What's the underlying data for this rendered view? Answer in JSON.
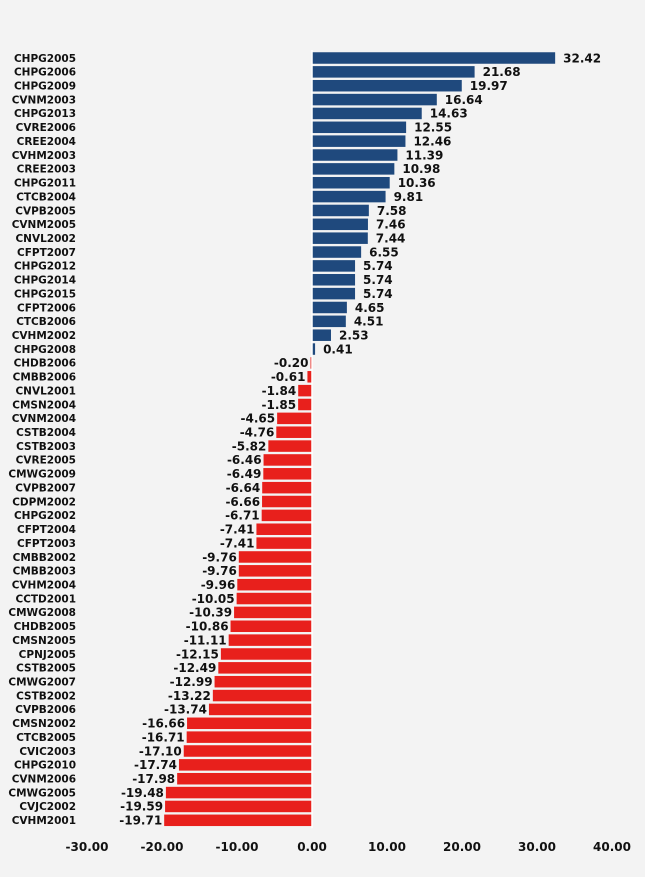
{
  "chart_data": {
    "type": "bar",
    "orientation": "horizontal",
    "title": "",
    "xlabel": "",
    "ylabel": "",
    "xlim": [
      -30,
      40
    ],
    "x_ticks": [
      "-30.00",
      "-20.00",
      "-10.00",
      "0.00",
      "10.00",
      "20.00",
      "30.00",
      "40.00"
    ],
    "grid": false,
    "colors": {
      "positive": "#1f497d",
      "negative": "#e8201c"
    },
    "categories": [
      "CHPG2005",
      "CHPG2006",
      "CHPG2009",
      "CVNM2003",
      "CHPG2013",
      "CVRE2006",
      "CREE2004",
      "CVHM2003",
      "CREE2003",
      "CHPG2011",
      "CTCB2004",
      "CVPB2005",
      "CVNM2005",
      "CNVL2002",
      "CFPT2007",
      "CHPG2012",
      "CHPG2014",
      "CHPG2015",
      "CFPT2006",
      "CTCB2006",
      "CVHM2002",
      "CHPG2008",
      "CHDB2006",
      "CMBB2006",
      "CNVL2001",
      "CMSN2004",
      "CVNM2004",
      "CSTB2004",
      "CSTB2003",
      "CVRE2005",
      "CMWG2009",
      "CVPB2007",
      "CDPM2002",
      "CHPG2002",
      "CFPT2004",
      "CFPT2003",
      "CMBB2002",
      "CMBB2003",
      "CVHM2004",
      "CCTD2001",
      "CMWG2008",
      "CHDB2005",
      "CMSN2005",
      "CPNJ2005",
      "CSTB2005",
      "CMWG2007",
      "CSTB2002",
      "CVPB2006",
      "CMSN2002",
      "CTCB2005",
      "CVIC2003",
      "CHPG2010",
      "CVNM2006",
      "CMWG2005",
      "CVJC2002",
      "CVHM2001"
    ],
    "values": [
      32.42,
      21.68,
      19.97,
      16.64,
      14.63,
      12.55,
      12.46,
      11.39,
      10.98,
      10.36,
      9.81,
      7.58,
      7.46,
      7.44,
      6.55,
      5.74,
      5.74,
      5.74,
      4.65,
      4.51,
      2.53,
      0.41,
      -0.2,
      -0.61,
      -1.84,
      -1.85,
      -4.65,
      -4.76,
      -5.82,
      -6.46,
      -6.49,
      -6.64,
      -6.66,
      -6.71,
      -7.41,
      -7.41,
      -9.76,
      -9.76,
      -9.96,
      -10.05,
      -10.39,
      -10.86,
      -11.11,
      -12.15,
      -12.49,
      -12.99,
      -13.22,
      -13.74,
      -16.66,
      -16.71,
      -17.1,
      -17.74,
      -17.98,
      -19.48,
      -19.59,
      -19.71
    ],
    "value_labels": [
      "32.42",
      "21.68",
      "19.97",
      "16.64",
      "14.63",
      "12.55",
      "12.46",
      "11.39",
      "10.98",
      "10.36",
      "9.81",
      "7.58",
      "7.46",
      "7.44",
      "6.55",
      "5.74",
      "5.74",
      "5.74",
      "4.65",
      "4.51",
      "2.53",
      "0.41",
      "-0.20",
      "-0.61",
      "-1.84",
      "-1.85",
      "-4.65",
      "-4.76",
      "-5.82",
      "-6.46",
      "-6.49",
      "-6.64",
      "-6.66",
      "-6.71",
      "-7.41",
      "-7.41",
      "-9.76",
      "-9.76",
      "-9.96",
      "-10.05",
      "-10.39",
      "-10.86",
      "-11.11",
      "-12.15",
      "-12.49",
      "-12.99",
      "-13.22",
      "-13.74",
      "-16.66",
      "-16.71",
      "-17.10",
      "-17.74",
      "-17.98",
      "-19.48",
      "-19.59",
      "-19.71"
    ]
  }
}
